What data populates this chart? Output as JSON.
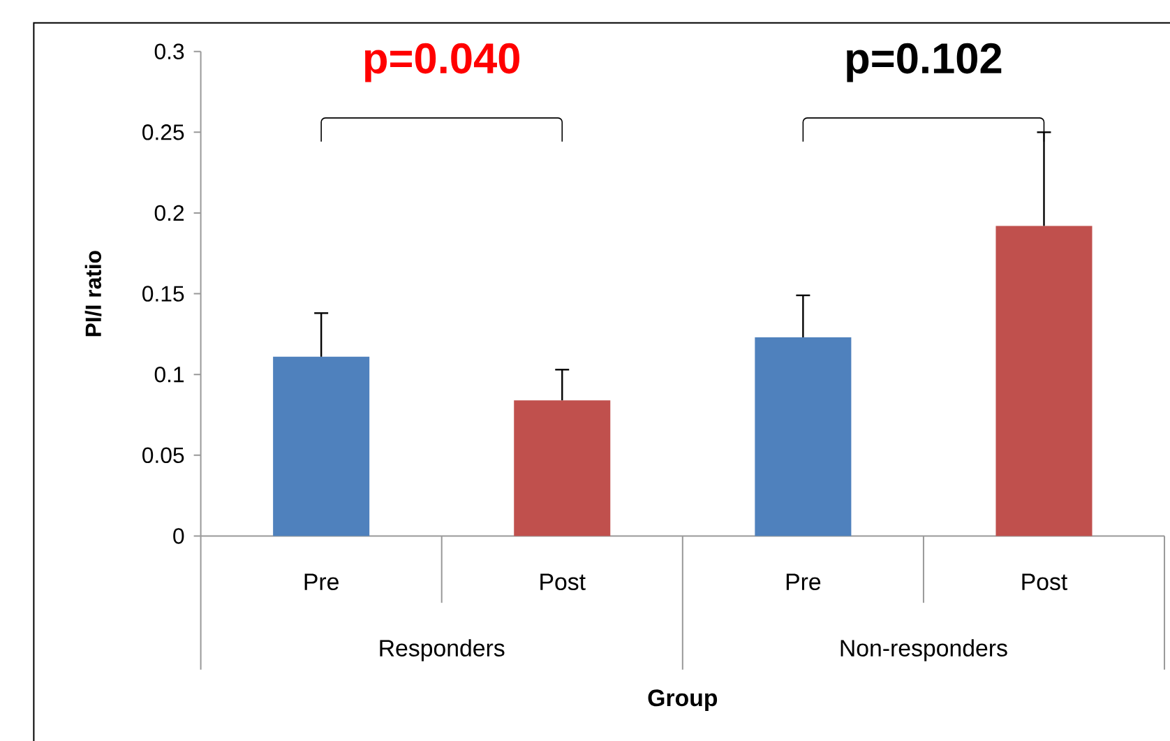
{
  "chart_data": {
    "type": "bar",
    "xlabel": "Group",
    "ylabel": "PI/I ratio",
    "categories": [
      "Pre",
      "Post",
      "Pre",
      "Post"
    ],
    "values": [
      0.111,
      0.084,
      0.123,
      0.192
    ],
    "colors": [
      "#4f81bd",
      "#c0504d",
      "#4f81bd",
      "#c0504d"
    ],
    "errors": [
      0.027,
      0.019,
      0.026,
      0.058
    ],
    "ylim": [
      0,
      0.3
    ],
    "yticks": [
      0,
      0.05,
      0.1,
      0.15,
      0.2,
      0.25,
      0.3
    ],
    "grid": false,
    "annotations": [
      "p=0.040",
      "p=0.102",
      "Responders",
      "Non-responders"
    ]
  }
}
